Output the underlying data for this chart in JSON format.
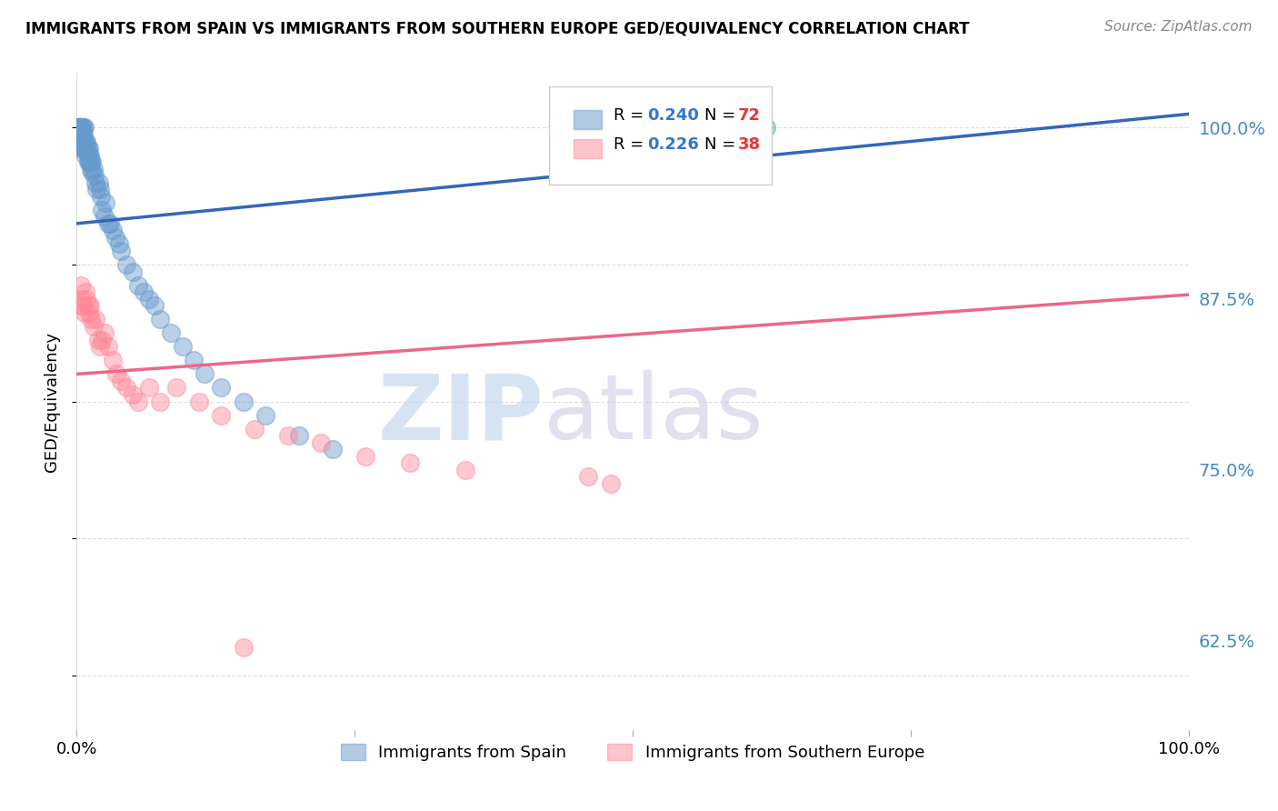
{
  "title": "IMMIGRANTS FROM SPAIN VS IMMIGRANTS FROM SOUTHERN EUROPE GED/EQUIVALENCY CORRELATION CHART",
  "source": "Source: ZipAtlas.com",
  "ylabel": "GED/Equivalency",
  "ytick_labels": [
    "100.0%",
    "87.5%",
    "75.0%",
    "62.5%"
  ],
  "ytick_values": [
    1.0,
    0.875,
    0.75,
    0.625
  ],
  "xlim": [
    0.0,
    1.0
  ],
  "ylim": [
    0.56,
    1.04
  ],
  "blue_R": 0.24,
  "blue_N": 72,
  "pink_R": 0.226,
  "pink_N": 38,
  "blue_color": "#6699CC",
  "pink_color": "#FF8899",
  "blue_line_color": "#3366BB",
  "pink_line_color": "#EE6688",
  "legend_label_blue": "Immigrants from Spain",
  "legend_label_pink": "Immigrants from Southern Europe",
  "blue_scatter_x": [
    0.001,
    0.002,
    0.002,
    0.003,
    0.003,
    0.003,
    0.004,
    0.004,
    0.004,
    0.004,
    0.005,
    0.005,
    0.005,
    0.005,
    0.005,
    0.006,
    0.006,
    0.006,
    0.006,
    0.007,
    0.007,
    0.007,
    0.008,
    0.008,
    0.008,
    0.009,
    0.009,
    0.01,
    0.01,
    0.01,
    0.011,
    0.011,
    0.011,
    0.012,
    0.012,
    0.013,
    0.013,
    0.014,
    0.014,
    0.015,
    0.016,
    0.017,
    0.018,
    0.02,
    0.021,
    0.022,
    0.023,
    0.025,
    0.026,
    0.028,
    0.03,
    0.032,
    0.035,
    0.038,
    0.04,
    0.045,
    0.05,
    0.055,
    0.06,
    0.065,
    0.07,
    0.075,
    0.085,
    0.095,
    0.105,
    0.115,
    0.13,
    0.15,
    0.17,
    0.2,
    0.23,
    0.62
  ],
  "blue_scatter_y": [
    1.0,
    1.0,
    1.0,
    1.0,
    1.0,
    1.0,
    1.0,
    1.0,
    1.0,
    0.99,
    1.0,
    1.0,
    0.995,
    0.99,
    0.985,
    1.0,
    0.995,
    0.99,
    0.985,
    1.0,
    0.99,
    0.985,
    0.99,
    0.985,
    0.98,
    0.99,
    0.985,
    0.985,
    0.98,
    0.975,
    0.985,
    0.98,
    0.975,
    0.98,
    0.975,
    0.975,
    0.97,
    0.975,
    0.968,
    0.97,
    0.965,
    0.96,
    0.955,
    0.96,
    0.955,
    0.95,
    0.94,
    0.935,
    0.945,
    0.93,
    0.93,
    0.925,
    0.92,
    0.915,
    0.91,
    0.9,
    0.895,
    0.885,
    0.88,
    0.875,
    0.87,
    0.86,
    0.85,
    0.84,
    0.83,
    0.82,
    0.81,
    0.8,
    0.79,
    0.775,
    0.765,
    1.0
  ],
  "pink_scatter_x": [
    0.003,
    0.004,
    0.005,
    0.006,
    0.007,
    0.008,
    0.009,
    0.01,
    0.011,
    0.012,
    0.013,
    0.015,
    0.017,
    0.019,
    0.021,
    0.023,
    0.025,
    0.028,
    0.032,
    0.036,
    0.04,
    0.045,
    0.05,
    0.055,
    0.065,
    0.075,
    0.09,
    0.11,
    0.13,
    0.16,
    0.19,
    0.22,
    0.26,
    0.3,
    0.35,
    0.46,
    0.48,
    0.15
  ],
  "pink_scatter_y": [
    0.87,
    0.885,
    0.875,
    0.87,
    0.865,
    0.88,
    0.875,
    0.87,
    0.865,
    0.87,
    0.86,
    0.855,
    0.86,
    0.845,
    0.84,
    0.845,
    0.85,
    0.84,
    0.83,
    0.82,
    0.815,
    0.81,
    0.805,
    0.8,
    0.81,
    0.8,
    0.81,
    0.8,
    0.79,
    0.78,
    0.775,
    0.77,
    0.76,
    0.755,
    0.75,
    0.745,
    0.74,
    0.62
  ],
  "blue_line_x": [
    0.0,
    1.0
  ],
  "blue_line_y": [
    0.93,
    1.01
  ],
  "pink_line_x": [
    0.0,
    1.0
  ],
  "pink_line_y": [
    0.82,
    0.878
  ],
  "grid_color": "#DDDDDD",
  "background_color": "#FFFFFF",
  "watermark_zip_color": "#C5D8EE",
  "watermark_atlas_color": "#C8C8E0"
}
